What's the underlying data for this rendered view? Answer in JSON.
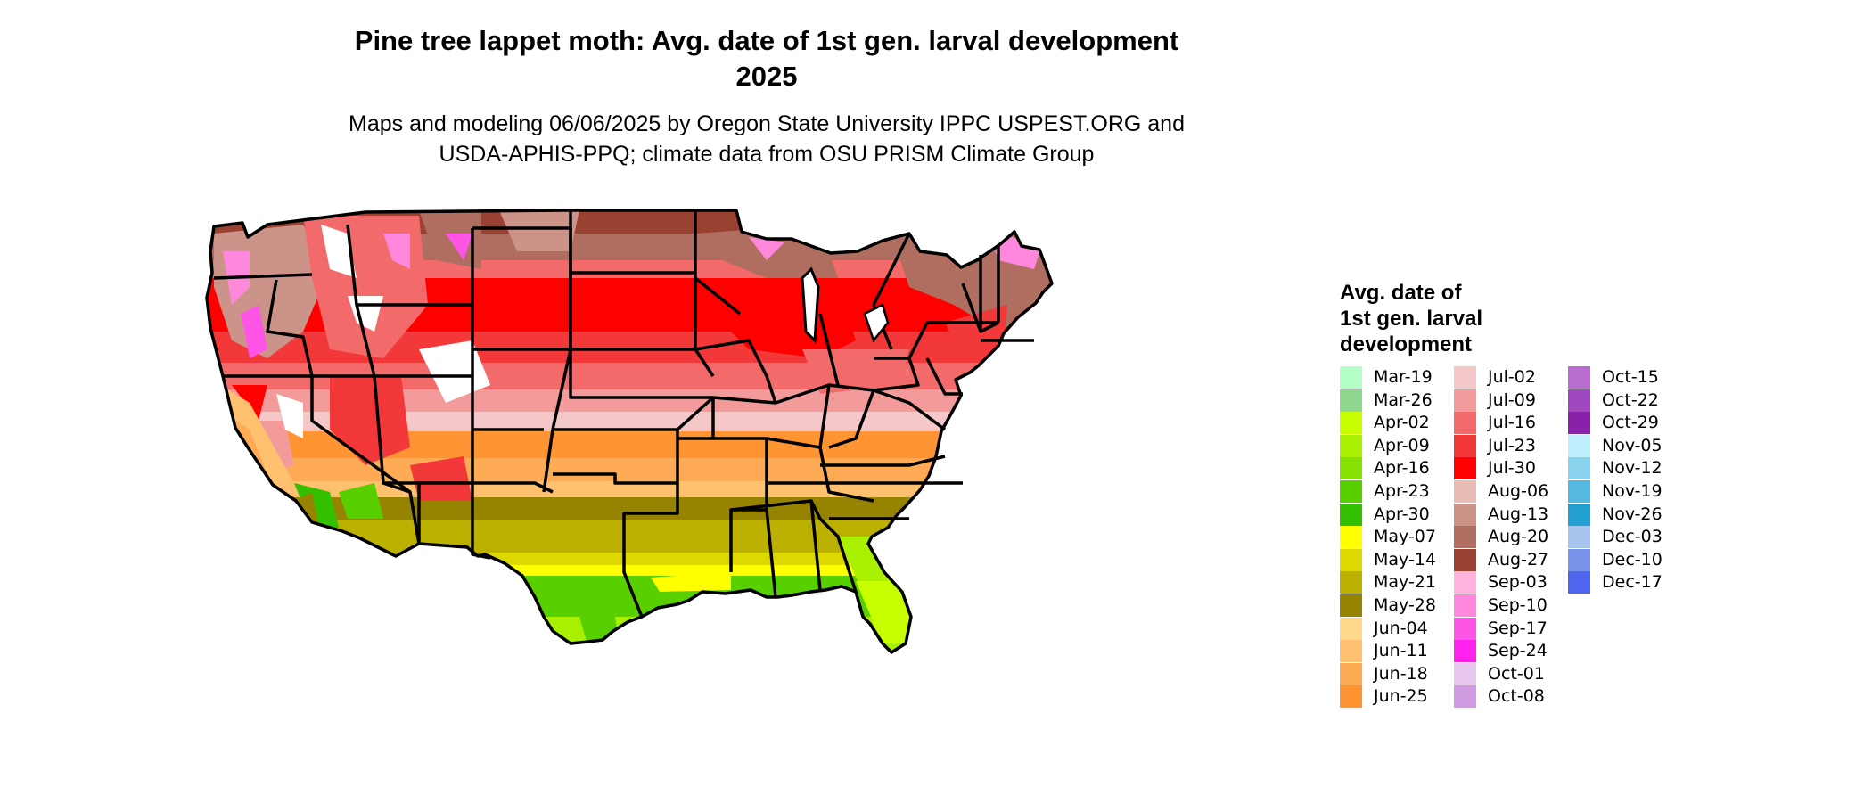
{
  "title": "Pine tree lappet moth: Avg. date of 1st gen. larval development",
  "title_year": "2025",
  "subtitle_line1": "Maps and modeling 06/06/2025 by Oregon State University IPPC USPEST.ORG and",
  "subtitle_line2": "USDA-APHIS-PPQ; climate data from OSU PRISM Climate Group",
  "legend": {
    "title_lines": [
      "Avg. date of",
      "1st gen. larval",
      "development"
    ],
    "items": [
      {
        "label": "Mar-19",
        "color": "#b3ffc8"
      },
      {
        "label": "Mar-26",
        "color": "#8fd68f"
      },
      {
        "label": "Apr-02",
        "color": "#c8ff00"
      },
      {
        "label": "Apr-09",
        "color": "#a8f000"
      },
      {
        "label": "Apr-16",
        "color": "#86e000"
      },
      {
        "label": "Apr-23",
        "color": "#58d000"
      },
      {
        "label": "Apr-30",
        "color": "#33c000"
      },
      {
        "label": "May-07",
        "color": "#ffff00"
      },
      {
        "label": "May-14",
        "color": "#dcd800"
      },
      {
        "label": "May-21",
        "color": "#bcb000"
      },
      {
        "label": "May-28",
        "color": "#968400"
      },
      {
        "label": "Jun-04",
        "color": "#ffd88c"
      },
      {
        "label": "Jun-11",
        "color": "#ffc070"
      },
      {
        "label": "Jun-18",
        "color": "#ffaa55"
      },
      {
        "label": "Jun-25",
        "color": "#ff9433"
      },
      {
        "label": "Jul-02",
        "color": "#f4c8c8"
      },
      {
        "label": "Jul-09",
        "color": "#f39a9a"
      },
      {
        "label": "Jul-16",
        "color": "#f26a6a"
      },
      {
        "label": "Jul-23",
        "color": "#f23838"
      },
      {
        "label": "Jul-30",
        "color": "#ff0000"
      },
      {
        "label": "Aug-06",
        "color": "#e8bcb4"
      },
      {
        "label": "Aug-13",
        "color": "#cc9488"
      },
      {
        "label": "Aug-20",
        "color": "#b06e60"
      },
      {
        "label": "Aug-27",
        "color": "#9a4232"
      },
      {
        "label": "Sep-03",
        "color": "#ffb3dc"
      },
      {
        "label": "Sep-10",
        "color": "#ff88dc"
      },
      {
        "label": "Sep-17",
        "color": "#ff55e6"
      },
      {
        "label": "Sep-24",
        "color": "#ff22ee"
      },
      {
        "label": "Oct-01",
        "color": "#e8c8ee"
      },
      {
        "label": "Oct-08",
        "color": "#d09ae0"
      },
      {
        "label": "Oct-15",
        "color": "#b86cd0"
      },
      {
        "label": "Oct-22",
        "color": "#a048c0"
      },
      {
        "label": "Oct-29",
        "color": "#8822aa"
      },
      {
        "label": "Nov-05",
        "color": "#bdeefc"
      },
      {
        "label": "Nov-12",
        "color": "#88d2ee"
      },
      {
        "label": "Nov-19",
        "color": "#55b8e0"
      },
      {
        "label": "Nov-26",
        "color": "#22a0d0"
      },
      {
        "label": "Dec-03",
        "color": "#a6c4ee"
      },
      {
        "label": "Dec-10",
        "color": "#7a94ee"
      },
      {
        "label": "Dec-17",
        "color": "#4e66ee"
      }
    ]
  },
  "colors": {
    "no_data": "#ffffff",
    "state_boundary": "#000000"
  }
}
